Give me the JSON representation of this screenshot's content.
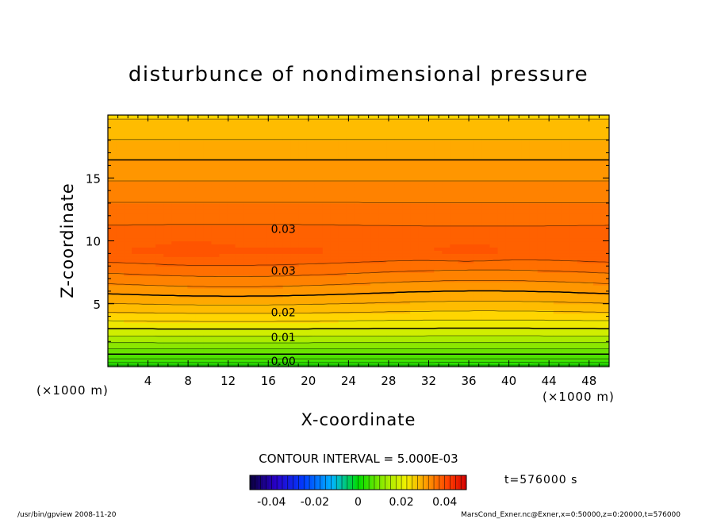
{
  "chart_data": {
    "type": "heatmap",
    "title": "disturbunce of nondimensional pressure",
    "xlabel": "X-coordinate",
    "ylabel": "Z-coordinate",
    "x_unit_left": "(×1000 m)",
    "x_unit_right": "(×1000 m)",
    "xlim": [
      0,
      50
    ],
    "ylim": [
      0,
      20
    ],
    "x_ticks": [
      "4",
      "8",
      "12",
      "16",
      "20",
      "24",
      "28",
      "32",
      "36",
      "40",
      "44",
      "48"
    ],
    "y_ticks": [
      "5",
      "10",
      "15"
    ],
    "contour_labels": [
      {
        "text": "0.03",
        "x": 17.5,
        "z": 11.0
      },
      {
        "text": "0.03",
        "x": 17.5,
        "z": 7.7
      },
      {
        "text": "0.02",
        "x": 17.5,
        "z": 4.4
      },
      {
        "text": "0.01",
        "x": 17.5,
        "z": 2.4
      },
      {
        "text": "0.00",
        "x": 17.5,
        "z": 0.5
      }
    ],
    "contour_interval_text": "CONTOUR INTERVAL = 5.000E-03",
    "time_text": "t=576000 s",
    "colorbar": {
      "min": -0.05,
      "max": 0.05,
      "tick_labels": [
        "-0.04",
        "-0.02",
        "0",
        "0.02",
        "0.04"
      ],
      "tick_values": [
        -0.04,
        -0.02,
        0,
        0.02,
        0.04
      ]
    }
  },
  "footer": {
    "left": "/usr/bin/gpview   2008-11-20",
    "right": "MarsCond_Exner.nc@Exner,x=0:50000,z=0:20000,t=576000"
  }
}
